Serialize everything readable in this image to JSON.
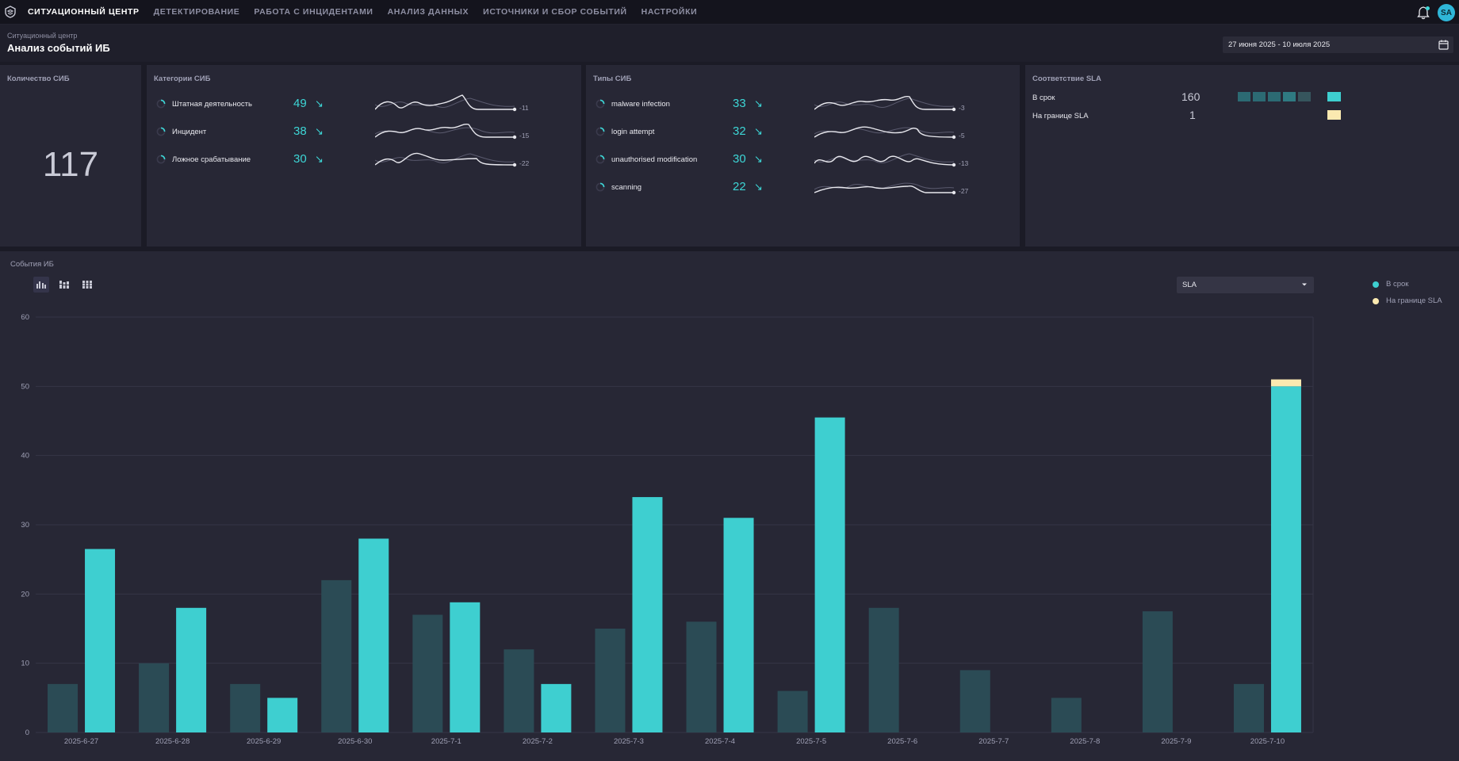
{
  "nav": {
    "items": [
      "СИТУАЦИОННЫЙ ЦЕНТР",
      "ДЕТЕКТИРОВАНИЕ",
      "РАБОТА С ИНЦИДЕНТАМИ",
      "АНАЛИЗ ДАННЫХ",
      "ИСТОЧНИКИ И СБОР СОБЫТИЙ",
      "НАСТРОЙКИ"
    ],
    "active_index": 0,
    "avatar_initials": "SA"
  },
  "header": {
    "breadcrumb": "Ситуационный центр",
    "title": "Анализ событий ИБ",
    "date_range": "27 июня 2025 - 10 июля 2025"
  },
  "count_card": {
    "title": "Количество СИБ",
    "value": "117"
  },
  "categories_card": {
    "title": "Категории СИБ",
    "rows": [
      {
        "label": "Штатная деятельность",
        "value": "49",
        "delta": "-11"
      },
      {
        "label": "Инцидент",
        "value": "38",
        "delta": "-15"
      },
      {
        "label": "Ложное срабатывание",
        "value": "30",
        "delta": "-22"
      }
    ]
  },
  "types_card": {
    "title": "Типы СИБ",
    "rows": [
      {
        "label": "malware infection",
        "value": "33",
        "delta": "-3"
      },
      {
        "label": "login attempt",
        "value": "32",
        "delta": "-5"
      },
      {
        "label": "unauthorised modification",
        "value": "30",
        "delta": "-13"
      },
      {
        "label": "scanning",
        "value": "22",
        "delta": "-27"
      }
    ]
  },
  "sla_card": {
    "title": "Соответствие SLA",
    "rows": [
      {
        "label": "В срок",
        "value": "160",
        "color": "#3ecfd0"
      },
      {
        "label": "На границе SLA",
        "value": "1",
        "color": "#fbe9b0"
      }
    ]
  },
  "events_panel": {
    "title": "События ИБ",
    "select_value": "SLA",
    "legend": [
      {
        "label": "В срок",
        "color": "#3ecfd0"
      },
      {
        "label": "На границе SLA",
        "color": "#fbe9b0"
      }
    ]
  },
  "chart_data": {
    "type": "bar",
    "categories": [
      "2025-6-27",
      "2025-6-28",
      "2025-6-29",
      "2025-6-30",
      "2025-7-1",
      "2025-7-2",
      "2025-7-3",
      "2025-7-4",
      "2025-7-5",
      "2025-7-6",
      "2025-7-7",
      "2025-7-8",
      "2025-7-9",
      "2025-7-10"
    ],
    "ylim": [
      0,
      60
    ],
    "yticks": [
      0,
      10,
      20,
      30,
      40,
      50,
      60
    ],
    "grid": true,
    "series": [
      {
        "name": "",
        "color": "#2b4b55",
        "values": [
          7,
          10,
          7,
          22,
          17,
          12,
          15,
          16,
          6,
          18,
          9,
          5,
          17.5,
          7
        ]
      },
      {
        "name": "В срок",
        "color": "#3ecfd0",
        "values": [
          26.5,
          18,
          5,
          28,
          18.8,
          7,
          34,
          31,
          45.5,
          0,
          0,
          0,
          0,
          50
        ]
      },
      {
        "name": "На границе SLA",
        "color": "#fbe9b0",
        "values": [
          0,
          0,
          0,
          0,
          0,
          0,
          0,
          0,
          0,
          0,
          0,
          0,
          0,
          1
        ]
      }
    ]
  }
}
